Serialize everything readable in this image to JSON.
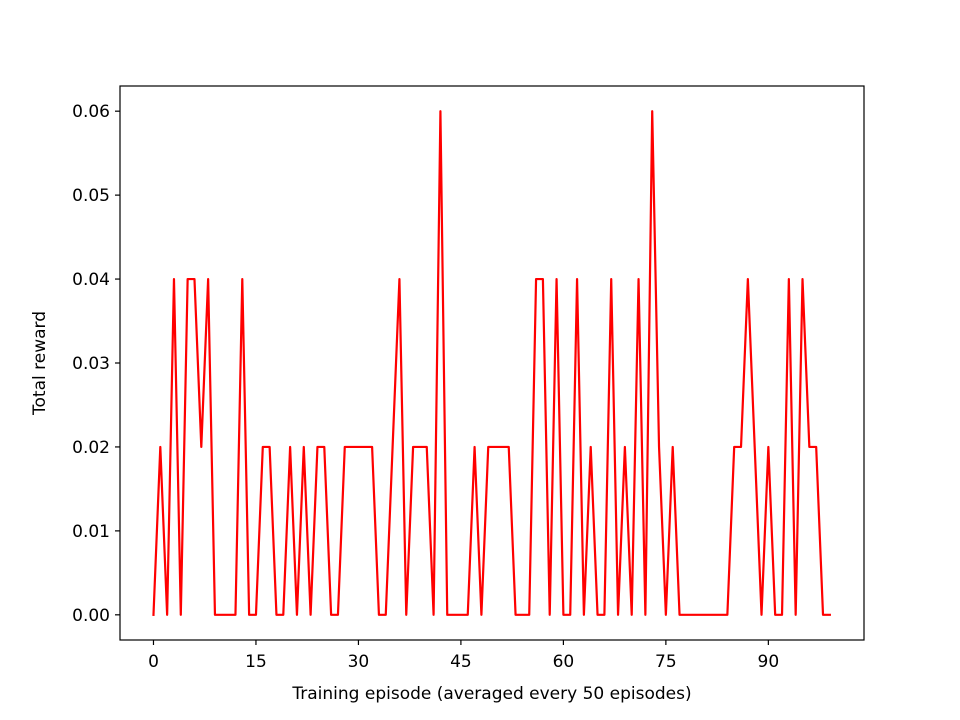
{
  "chart_data": {
    "type": "line",
    "title": "",
    "xlabel": "Training episode (averaged every 50 episodes)",
    "ylabel": "Total reward",
    "xlim": [
      -4.9,
      104.0
    ],
    "ylim": [
      -0.003,
      0.063
    ],
    "x_ticks": [
      0,
      15,
      30,
      45,
      60,
      75,
      90
    ],
    "x_tick_labels": [
      "0",
      "15",
      "30",
      "45",
      "60",
      "75",
      "90"
    ],
    "y_ticks": [
      0.0,
      0.01,
      0.02,
      0.03,
      0.04,
      0.05,
      0.06
    ],
    "y_tick_labels": [
      "0.00",
      "0.01",
      "0.02",
      "0.03",
      "0.04",
      "0.05",
      "0.06"
    ],
    "grid": false,
    "legend": "none",
    "series": [
      {
        "color": "#ff0000",
        "x": [
          0,
          1,
          2,
          3,
          4,
          5,
          6,
          7,
          8,
          9,
          10,
          11,
          12,
          13,
          14,
          15,
          16,
          17,
          18,
          19,
          20,
          21,
          22,
          23,
          24,
          25,
          26,
          27,
          28,
          29,
          30,
          31,
          32,
          33,
          34,
          35,
          36,
          37,
          38,
          39,
          40,
          41,
          42,
          43,
          44,
          45,
          46,
          47,
          48,
          49,
          50,
          51,
          52,
          53,
          54,
          55,
          56,
          57,
          58,
          59,
          60,
          61,
          62,
          63,
          64,
          65,
          66,
          67,
          68,
          69,
          70,
          71,
          72,
          73,
          74,
          75,
          76,
          77,
          78,
          79,
          80,
          81,
          82,
          83,
          84,
          85,
          86,
          87,
          88,
          89,
          90,
          91,
          92,
          93,
          94,
          95,
          96,
          97,
          98,
          99
        ],
        "y": [
          0.0,
          0.02,
          0.0,
          0.04,
          0.0,
          0.04,
          0.04,
          0.02,
          0.04,
          0.0,
          0.0,
          0.0,
          0.0,
          0.04,
          0.0,
          0.0,
          0.02,
          0.02,
          0.0,
          0.0,
          0.02,
          0.0,
          0.02,
          0.0,
          0.02,
          0.02,
          0.0,
          0.0,
          0.02,
          0.02,
          0.02,
          0.02,
          0.02,
          0.0,
          0.0,
          0.02,
          0.04,
          0.0,
          0.02,
          0.02,
          0.02,
          0.0,
          0.06,
          0.0,
          0.0,
          0.0,
          0.0,
          0.02,
          0.0,
          0.02,
          0.02,
          0.02,
          0.02,
          0.0,
          0.0,
          0.0,
          0.04,
          0.04,
          0.0,
          0.04,
          0.0,
          0.0,
          0.04,
          0.0,
          0.02,
          0.0,
          0.0,
          0.04,
          0.0,
          0.02,
          0.0,
          0.04,
          0.0,
          0.06,
          0.02,
          0.0,
          0.02,
          0.0,
          0.0,
          0.0,
          0.0,
          0.0,
          0.0,
          0.0,
          0.0,
          0.02,
          0.02,
          0.04,
          0.02,
          0.0,
          0.02,
          0.0,
          0.0,
          0.04,
          0.0,
          0.04,
          0.02,
          0.02,
          0.0,
          0.0
        ]
      }
    ]
  }
}
